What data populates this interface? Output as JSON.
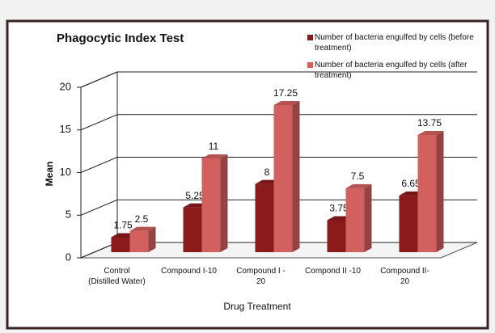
{
  "chart_data": {
    "type": "bar3d",
    "title": "Phagocytic Index Test",
    "ylabel": "Mean",
    "xlabel": "Drug Treatment",
    "categories": [
      "Control\n(Distilled Water)",
      "Compound I-10",
      "Compound I -\n20",
      "Compond II -10",
      "Compound II-\n20"
    ],
    "series": [
      {
        "name": "Number of bacteria engulfed by cells (before treatment)",
        "color": "#8b1a1a",
        "values": [
          1.75,
          5.25,
          8,
          3.75,
          6.65
        ]
      },
      {
        "name": "Number of bacteria engulfed by cells (after treatment)",
        "color": "#d2605f",
        "values": [
          2.5,
          11,
          17.25,
          7.5,
          13.75
        ]
      }
    ],
    "ylim": [
      0,
      20
    ],
    "yticks": [
      0,
      5,
      10,
      15,
      20
    ],
    "grid": true,
    "legend": "top-right"
  }
}
